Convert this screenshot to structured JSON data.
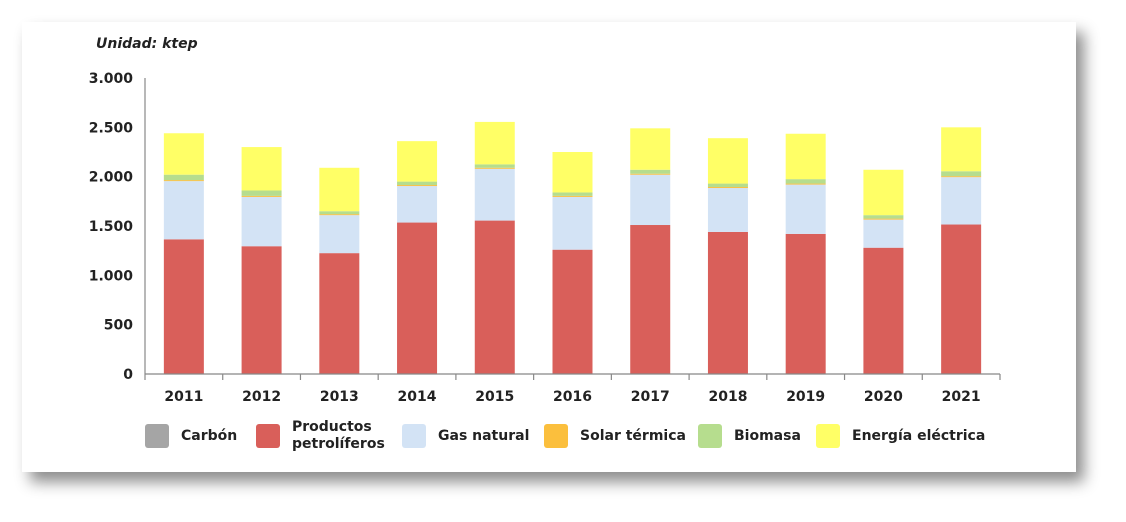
{
  "chart_data": {
    "type": "bar",
    "stacked": true,
    "title": "",
    "unit_label": "Unidad: ktep",
    "xlabel": "",
    "ylabel": "",
    "ylim": [
      0,
      3000
    ],
    "yticks": [
      0,
      500,
      1000,
      1500,
      2000,
      2500,
      3000
    ],
    "ytick_labels": [
      "0",
      "500",
      "1.000",
      "1.500",
      "2.000",
      "2.500",
      "3.000"
    ],
    "categories": [
      "2011",
      "2012",
      "2013",
      "2014",
      "2015",
      "2016",
      "2017",
      "2018",
      "2019",
      "2020",
      "2021"
    ],
    "series": [
      {
        "name": "Carbón",
        "color": "#a5a5a5",
        "values": [
          0,
          0,
          0,
          0,
          0,
          0,
          0,
          0,
          0,
          0,
          0
        ]
      },
      {
        "name": "Productos petrolíferos",
        "color": "#d95f5a",
        "values": [
          1365,
          1295,
          1225,
          1535,
          1555,
          1260,
          1510,
          1440,
          1420,
          1280,
          1515
        ]
      },
      {
        "name": "Gas natural",
        "color": "#d3e3f5",
        "values": [
          590,
          500,
          385,
          370,
          525,
          535,
          510,
          445,
          500,
          285,
          480
        ]
      },
      {
        "name": "Solar térmica",
        "color": "#fbbf3d",
        "values": [
          10,
          10,
          10,
          10,
          10,
          10,
          10,
          10,
          10,
          10,
          10
        ]
      },
      {
        "name": "Biomasa",
        "color": "#b6dd8e",
        "values": [
          55,
          55,
          30,
          35,
          35,
          35,
          40,
          35,
          45,
          35,
          50
        ]
      },
      {
        "name": "Energía eléctrica",
        "color": "#ffff66",
        "values": [
          420,
          440,
          440,
          410,
          430,
          410,
          420,
          460,
          460,
          460,
          445
        ]
      }
    ],
    "legend_position": "bottom",
    "grid": false
  },
  "legend": {
    "items": [
      {
        "label": "Carbón",
        "color": "#a5a5a5"
      },
      {
        "label": "Productos petrolíferos",
        "color": "#d95f5a"
      },
      {
        "label": "Gas natural",
        "color": "#d3e3f5"
      },
      {
        "label": "Solar térmica",
        "color": "#fbbf3d"
      },
      {
        "label": "Biomasa",
        "color": "#b6dd8e"
      },
      {
        "label": "Energía eléctrica",
        "color": "#ffff66"
      }
    ]
  }
}
